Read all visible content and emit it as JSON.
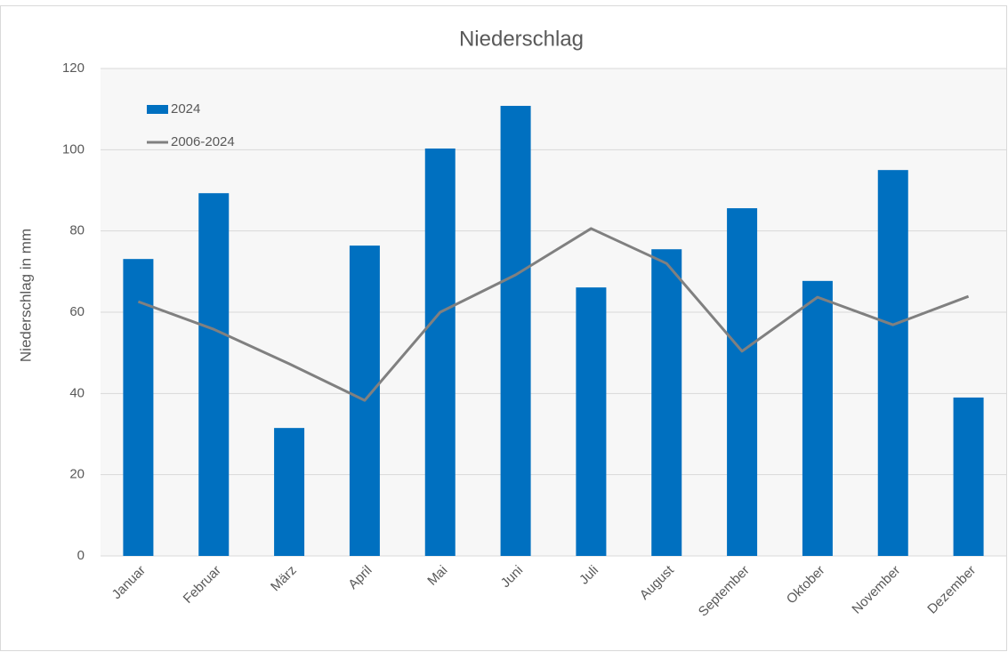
{
  "chart_data": {
    "type": "combo",
    "title": "Niederschlag",
    "y_label": "Niederschlag in mm",
    "categories": [
      "Januar",
      "Februar",
      "März",
      "April",
      "Mai",
      "Juni",
      "Juli",
      "August",
      "September",
      "Oktober",
      "November",
      "Dezember"
    ],
    "series": [
      {
        "name": "2024",
        "type": "bar",
        "color": "#0070c0",
        "values": [
          73.1,
          89.3,
          31.5,
          76.4,
          100.3,
          110.8,
          66.1,
          75.5,
          85.6,
          67.7,
          95.0,
          39.0
        ]
      },
      {
        "name": "2006-2024",
        "type": "line",
        "color": "#808080",
        "values": [
          62.6,
          55.8,
          47.3,
          38.3,
          60.0,
          69.2,
          80.6,
          72.0,
          50.4,
          63.7,
          56.9,
          63.9
        ]
      }
    ],
    "ylim": [
      0,
      120
    ],
    "yticks": [
      0,
      20,
      40,
      60,
      80,
      100,
      120
    ],
    "grid": true,
    "legend": "top-left"
  }
}
